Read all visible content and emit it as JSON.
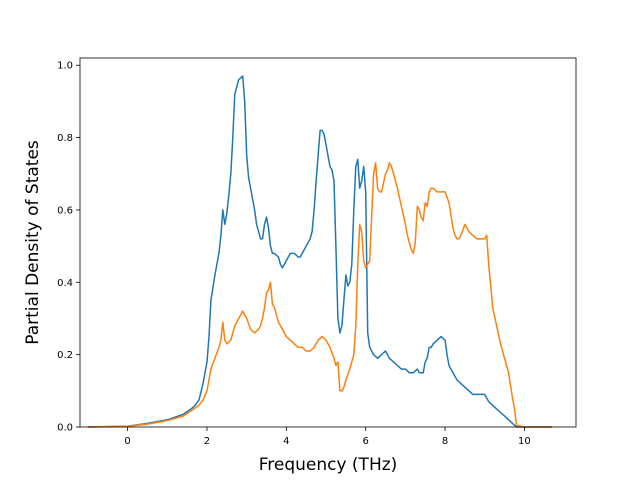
{
  "chart_data": {
    "type": "line",
    "title": "",
    "xlabel": "Frequency (THz)",
    "ylabel": "Partial Density of States",
    "xlim": [
      -1.2,
      11.3
    ],
    "ylim": [
      0,
      1.02
    ],
    "xticks": [
      0,
      2,
      4,
      6,
      8,
      10
    ],
    "xtick_labels": [
      "0",
      "2",
      "4",
      "6",
      "8",
      "10"
    ],
    "yticks": [
      0.0,
      0.2,
      0.4,
      0.6,
      0.8,
      1.0
    ],
    "ytick_labels": [
      "0.0",
      "0.2",
      "0.4",
      "0.6",
      "0.8",
      "1.0"
    ],
    "grid": false,
    "legend": "none",
    "series": [
      {
        "color": "#1f77b4",
        "x": [
          -1.0,
          0.0,
          0.5,
          1.0,
          1.4,
          1.6,
          1.7,
          1.8,
          1.9,
          2.0,
          2.05,
          2.1,
          2.2,
          2.3,
          2.35,
          2.4,
          2.45,
          2.5,
          2.55,
          2.6,
          2.65,
          2.7,
          2.8,
          2.85,
          2.9,
          2.95,
          3.0,
          3.05,
          3.1,
          3.2,
          3.25,
          3.3,
          3.35,
          3.4,
          3.45,
          3.5,
          3.55,
          3.6,
          3.65,
          3.7,
          3.8,
          3.85,
          3.9,
          3.95,
          4.0,
          4.1,
          4.2,
          4.3,
          4.35,
          4.4,
          4.5,
          4.6,
          4.65,
          4.7,
          4.75,
          4.8,
          4.85,
          4.9,
          4.95,
          5.0,
          5.05,
          5.1,
          5.15,
          5.2,
          5.25,
          5.3,
          5.35,
          5.4,
          5.45,
          5.5,
          5.55,
          5.6,
          5.65,
          5.7,
          5.75,
          5.8,
          5.85,
          5.9,
          5.95,
          6.0,
          6.05,
          6.1,
          6.15,
          6.2,
          6.3,
          6.4,
          6.5,
          6.6,
          6.7,
          6.8,
          6.9,
          7.0,
          7.1,
          7.2,
          7.3,
          7.35,
          7.4,
          7.45,
          7.5,
          7.55,
          7.6,
          7.65,
          7.7,
          7.8,
          7.9,
          8.0,
          8.05,
          8.1,
          8.15,
          8.2,
          8.3,
          8.4,
          8.5,
          8.6,
          8.7,
          8.8,
          9.0,
          9.1,
          9.2,
          9.3,
          9.4,
          9.5,
          9.6,
          9.65,
          9.7,
          9.8,
          10.0,
          10.7
        ],
        "values": [
          0.0,
          0.002,
          0.01,
          0.02,
          0.035,
          0.05,
          0.06,
          0.075,
          0.12,
          0.18,
          0.25,
          0.35,
          0.42,
          0.48,
          0.53,
          0.6,
          0.56,
          0.59,
          0.64,
          0.7,
          0.8,
          0.92,
          0.96,
          0.965,
          0.97,
          0.9,
          0.75,
          0.69,
          0.66,
          0.6,
          0.56,
          0.54,
          0.52,
          0.52,
          0.56,
          0.58,
          0.55,
          0.5,
          0.48,
          0.48,
          0.47,
          0.45,
          0.44,
          0.45,
          0.46,
          0.48,
          0.48,
          0.47,
          0.47,
          0.48,
          0.5,
          0.52,
          0.54,
          0.6,
          0.68,
          0.75,
          0.82,
          0.82,
          0.81,
          0.78,
          0.75,
          0.72,
          0.71,
          0.68,
          0.5,
          0.3,
          0.26,
          0.28,
          0.35,
          0.42,
          0.39,
          0.4,
          0.45,
          0.6,
          0.72,
          0.74,
          0.66,
          0.68,
          0.72,
          0.65,
          0.26,
          0.22,
          0.21,
          0.2,
          0.19,
          0.2,
          0.21,
          0.19,
          0.18,
          0.17,
          0.16,
          0.16,
          0.15,
          0.15,
          0.16,
          0.15,
          0.15,
          0.15,
          0.18,
          0.19,
          0.22,
          0.22,
          0.23,
          0.24,
          0.25,
          0.24,
          0.2,
          0.17,
          0.16,
          0.15,
          0.13,
          0.12,
          0.11,
          0.1,
          0.09,
          0.09,
          0.09,
          0.07,
          0.06,
          0.05,
          0.04,
          0.03,
          0.02,
          0.015,
          0.01,
          0.0,
          0.0,
          0.0
        ]
      },
      {
        "color": "#ff7f0e",
        "x": [
          -1.0,
          0.0,
          0.5,
          1.0,
          1.4,
          1.6,
          1.8,
          1.9,
          2.0,
          2.1,
          2.2,
          2.3,
          2.35,
          2.4,
          2.45,
          2.5,
          2.6,
          2.7,
          2.8,
          2.9,
          3.0,
          3.1,
          3.2,
          3.3,
          3.35,
          3.4,
          3.45,
          3.5,
          3.55,
          3.6,
          3.65,
          3.7,
          3.8,
          3.9,
          4.0,
          4.1,
          4.2,
          4.3,
          4.4,
          4.5,
          4.6,
          4.7,
          4.8,
          4.9,
          5.0,
          5.1,
          5.2,
          5.25,
          5.3,
          5.35,
          5.4,
          5.45,
          5.5,
          5.6,
          5.7,
          5.75,
          5.8,
          5.85,
          5.9,
          5.95,
          6.0,
          6.1,
          6.2,
          6.25,
          6.3,
          6.35,
          6.4,
          6.5,
          6.55,
          6.6,
          6.65,
          6.7,
          6.8,
          6.9,
          7.0,
          7.05,
          7.1,
          7.15,
          7.2,
          7.25,
          7.3,
          7.35,
          7.4,
          7.45,
          7.5,
          7.55,
          7.6,
          7.65,
          7.7,
          7.8,
          7.9,
          8.0,
          8.1,
          8.2,
          8.25,
          8.3,
          8.35,
          8.4,
          8.5,
          8.55,
          8.6,
          8.7,
          8.8,
          9.0,
          9.05,
          9.1,
          9.2,
          9.4,
          9.6,
          9.7,
          9.75,
          9.8,
          10.0,
          10.7
        ],
        "values": [
          0.0,
          0.002,
          0.008,
          0.018,
          0.03,
          0.045,
          0.06,
          0.075,
          0.1,
          0.16,
          0.19,
          0.22,
          0.24,
          0.29,
          0.24,
          0.23,
          0.24,
          0.28,
          0.3,
          0.32,
          0.3,
          0.27,
          0.26,
          0.27,
          0.28,
          0.3,
          0.33,
          0.37,
          0.38,
          0.4,
          0.34,
          0.33,
          0.29,
          0.27,
          0.25,
          0.24,
          0.23,
          0.22,
          0.22,
          0.21,
          0.21,
          0.22,
          0.24,
          0.25,
          0.24,
          0.22,
          0.19,
          0.17,
          0.18,
          0.1,
          0.1,
          0.11,
          0.13,
          0.16,
          0.2,
          0.28,
          0.45,
          0.56,
          0.54,
          0.46,
          0.44,
          0.46,
          0.7,
          0.73,
          0.66,
          0.65,
          0.65,
          0.7,
          0.71,
          0.73,
          0.72,
          0.7,
          0.66,
          0.61,
          0.56,
          0.53,
          0.51,
          0.49,
          0.48,
          0.51,
          0.61,
          0.6,
          0.58,
          0.57,
          0.62,
          0.61,
          0.65,
          0.66,
          0.66,
          0.65,
          0.65,
          0.65,
          0.62,
          0.55,
          0.53,
          0.52,
          0.52,
          0.53,
          0.56,
          0.55,
          0.54,
          0.53,
          0.52,
          0.52,
          0.53,
          0.45,
          0.33,
          0.23,
          0.15,
          0.08,
          0.05,
          0.005,
          0.0,
          0.0
        ]
      }
    ]
  }
}
